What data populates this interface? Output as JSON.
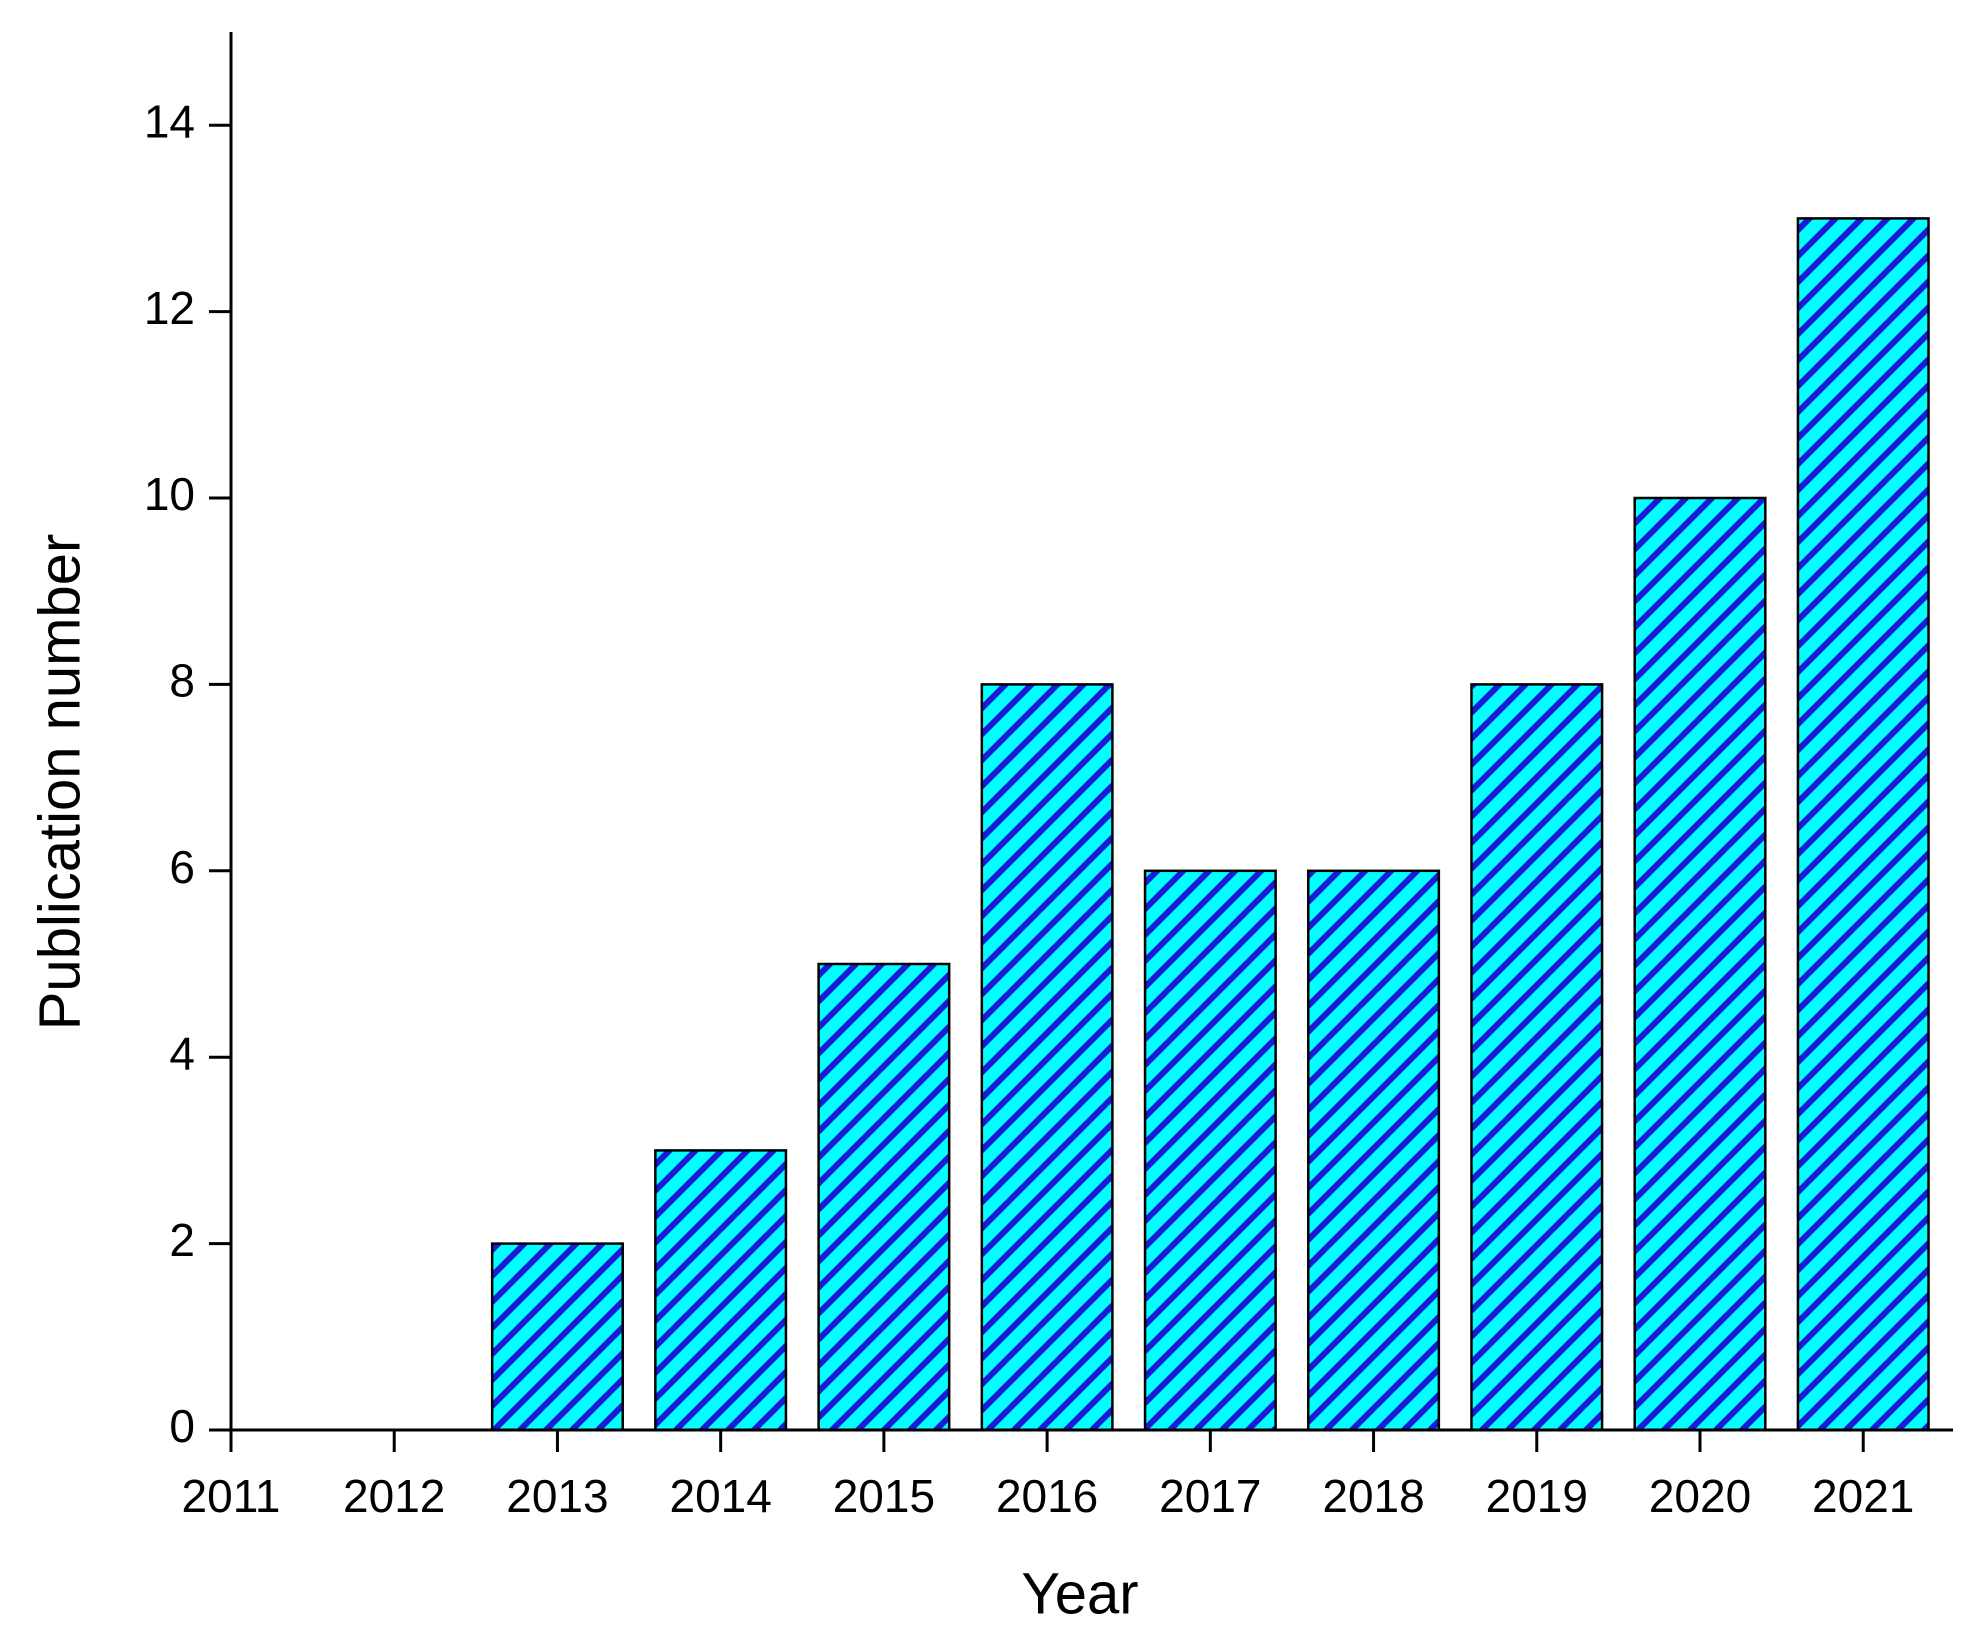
{
  "chart_data": {
    "type": "bar",
    "x_label": "Year",
    "y_label": "Publication number",
    "x": [
      2011,
      2012,
      2013,
      2014,
      2015,
      2016,
      2017,
      2018,
      2019,
      2020,
      2021
    ],
    "values": [
      0,
      0,
      2,
      3,
      5,
      8,
      6,
      6,
      8,
      10,
      13
    ],
    "color": "#00ffff",
    "hatch_color": "#1a1adb",
    "xlim": [
      2011,
      2021.55
    ],
    "xticks": [
      2011,
      2012,
      2013,
      2014,
      2015,
      2016,
      2017,
      2018,
      2019,
      2020,
      2021
    ],
    "ylim": [
      0,
      15
    ],
    "yticks": [
      0,
      2,
      4,
      6,
      8,
      10,
      12,
      14
    ]
  }
}
